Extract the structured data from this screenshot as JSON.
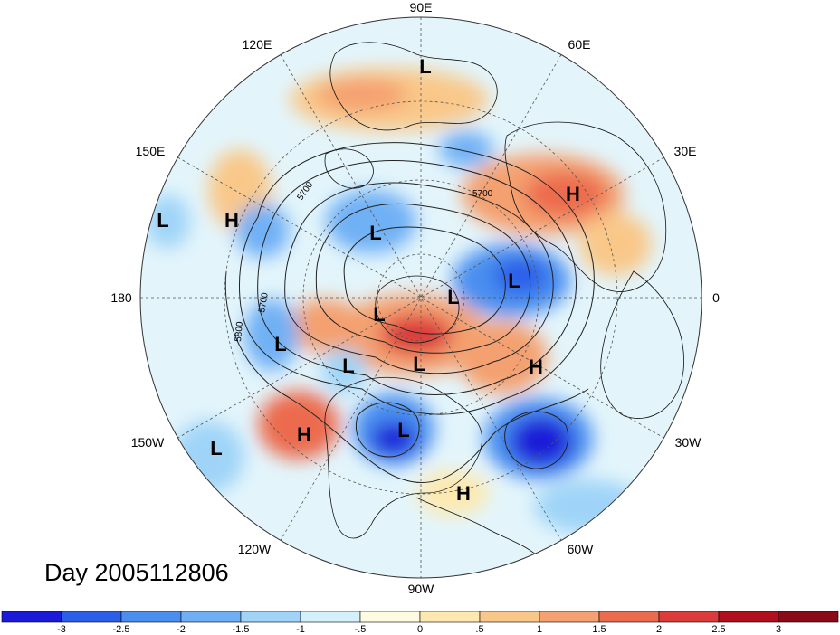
{
  "longitude_labels": [
    "90E",
    "60E",
    "120E",
    "30E",
    "150E",
    "180",
    "0",
    "150W",
    "30W",
    "120W",
    "60W",
    "90W"
  ],
  "pressure_systems": [
    {
      "type": "L"
    },
    {
      "type": "L"
    },
    {
      "type": "H"
    },
    {
      "type": "L"
    },
    {
      "type": "L"
    },
    {
      "type": "L"
    },
    {
      "type": "L"
    },
    {
      "type": "L"
    },
    {
      "type": "L"
    },
    {
      "type": "L"
    },
    {
      "type": "L"
    },
    {
      "type": "H"
    },
    {
      "type": "H"
    },
    {
      "type": "L"
    },
    {
      "type": "H"
    },
    {
      "type": "H"
    }
  ],
  "contour_labels": [
    "5700",
    "5700",
    "5700",
    "5800"
  ],
  "day_text": "Day 2005112806",
  "colorbar": {
    "ticks": [
      "-3",
      "-2.5",
      "-2",
      "-1.5",
      "-1",
      "-.5",
      "0",
      ".5",
      "1",
      "1.5",
      "2",
      "2.5",
      "3"
    ],
    "colors": [
      "#1a1ad8",
      "#2a5ee8",
      "#4a8ff0",
      "#6fb0f5",
      "#9fd4f8",
      "#d4f1fb",
      "#fefbe0",
      "#fde9b0",
      "#f9c889",
      "#f4a070",
      "#ec6a4e",
      "#dc3b3b",
      "#b0101e",
      "#8c0a18"
    ]
  },
  "colors": {
    "background": "#ffffff",
    "contour": "#222222",
    "grid": "#555555"
  }
}
